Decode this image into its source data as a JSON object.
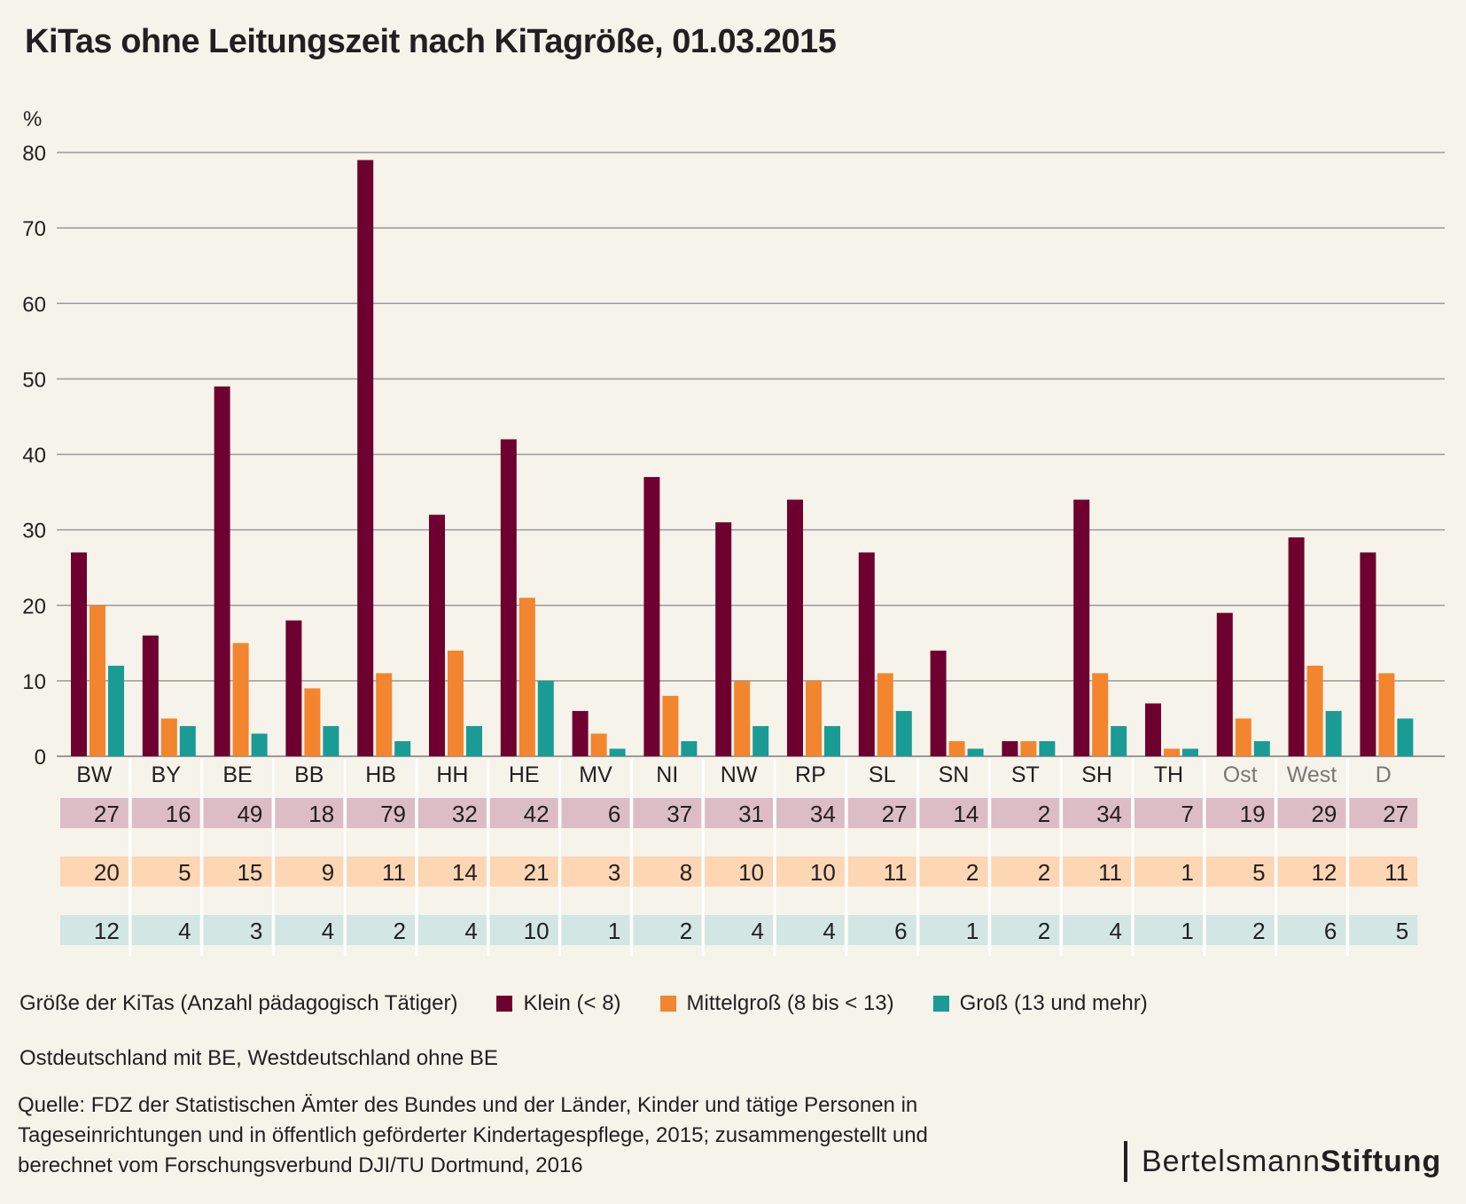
{
  "title": "KiTas ohne Leitungszeit nach KiTagröße, 01.03.2015",
  "legend_title": "Größe der KiTas (Anzahl pädagogisch Tätiger)",
  "note": "Ostdeutschland mit BE, Westdeutschland ohne BE",
  "source_lines": [
    "Quelle: FDZ der Statistischen Ämter des Bundes und der Länder, Kinder und tätige Personen in",
    "Tageseinrichtungen und in öffentlich geförderter Kindertagespflege, 2015; zusammengestellt und",
    "berechnet vom Forschungsverbund DJI/TU Dortmund, 2016"
  ],
  "logo": {
    "light": "Bertelsmann",
    "bold": "Stiftung"
  },
  "colors": {
    "klein": "#6e0030",
    "mittel": "#f2852e",
    "gross": "#1a9b96",
    "klein_row": "#dcbcc5",
    "mittel_row": "#fdd6b4",
    "gross_row": "#d2e6e4",
    "grid": "#9a9a9a",
    "aggregate_label": "#777777"
  },
  "chart_data": {
    "type": "bar",
    "title": "KiTas ohne Leitungszeit nach KiTagröße, 01.03.2015",
    "xlabel": "",
    "ylabel": "%",
    "ylim": [
      0,
      80
    ],
    "yticks": [
      0,
      10,
      20,
      30,
      40,
      50,
      60,
      70,
      80
    ],
    "grid": true,
    "legend_position": "bottom",
    "categories": [
      "BW",
      "BY",
      "BE",
      "BB",
      "HB",
      "HH",
      "HE",
      "MV",
      "NI",
      "NW",
      "RP",
      "SL",
      "SN",
      "ST",
      "SH",
      "TH",
      "Ost",
      "West",
      "D"
    ],
    "aggregate_categories": [
      "Ost",
      "West",
      "D"
    ],
    "series": [
      {
        "name": "Klein  (< 8)",
        "key": "klein",
        "values": [
          27,
          16,
          49,
          18,
          79,
          32,
          42,
          6,
          37,
          31,
          34,
          27,
          14,
          2,
          34,
          7,
          19,
          29,
          27
        ]
      },
      {
        "name": "Mittelgroß (8 bis < 13)",
        "key": "mittel",
        "values": [
          20,
          5,
          15,
          9,
          11,
          14,
          21,
          3,
          8,
          10,
          10,
          11,
          2,
          2,
          11,
          1,
          5,
          12,
          11
        ]
      },
      {
        "name": "Groß (13 und mehr)",
        "key": "gross",
        "values": [
          12,
          4,
          3,
          4,
          2,
          4,
          10,
          1,
          2,
          4,
          4,
          6,
          1,
          2,
          4,
          1,
          2,
          6,
          5
        ]
      }
    ]
  }
}
